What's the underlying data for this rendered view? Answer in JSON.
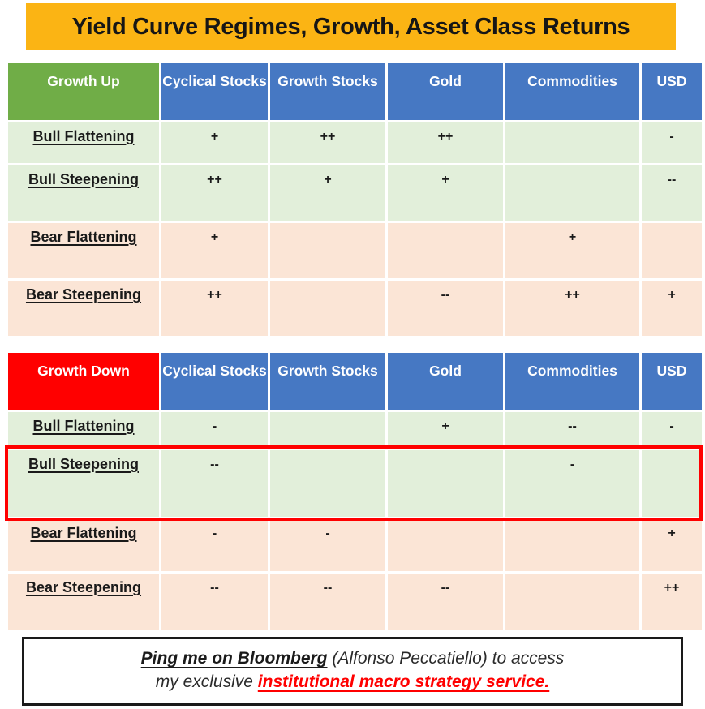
{
  "title": "Yield Curve Regimes, Growth, Asset Class Returns",
  "colors": {
    "title_bg": "#FBB414",
    "header_bg": "#4678C3",
    "growth_up_bg": "#70AD47",
    "growth_down_bg": "#FF0000",
    "bull_row_bg": "#E2EFDA",
    "bear_row_bg": "#FBE5D6",
    "highlight_border": "#FF0000",
    "footer_link_color": "#FF0000"
  },
  "chart_data": [
    {
      "type": "table",
      "title": "Growth Up",
      "columns": [
        "Cyclical Stocks",
        "Growth Stocks",
        "Gold",
        "Commodities",
        "USD"
      ],
      "rows": [
        [
          "Bull Flattening",
          "+",
          "++",
          "++",
          "",
          "-"
        ],
        [
          "Bull Steepening",
          "++",
          "+",
          "+",
          "",
          "--"
        ],
        [
          "Bear Flattening",
          "+",
          "",
          "",
          "+",
          ""
        ],
        [
          "Bear Steepening",
          "++",
          "",
          "--",
          "++",
          "+"
        ]
      ]
    },
    {
      "type": "table",
      "title": "Growth Down",
      "columns": [
        "Cyclical Stocks",
        "Growth Stocks",
        "Gold",
        "Commodities",
        "USD"
      ],
      "rows": [
        [
          "Bull Flattening",
          "-",
          "",
          "+",
          "--",
          "-"
        ],
        [
          "Bull Steepening",
          "--",
          "",
          "",
          "-",
          ""
        ],
        [
          "Bear Flattening",
          "-",
          "-",
          "",
          "",
          "+"
        ],
        [
          "Bear Steepening",
          "--",
          "--",
          "--",
          "",
          "++"
        ]
      ],
      "highlighted_row": "Bull Steepening"
    }
  ],
  "footer": {
    "line1_bold": "Ping me on Bloomberg",
    "line1_rest": " (Alfonso Peccatiello) to access",
    "line2_lead": "my exclusive ",
    "line2_emphasis": "institutional macro strategy service."
  }
}
